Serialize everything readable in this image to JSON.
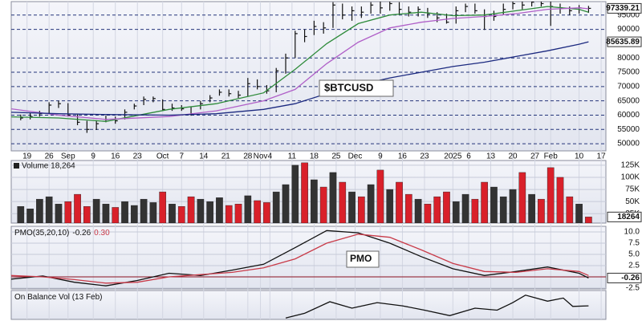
{
  "chart_data": [
    {
      "type": "ohlc",
      "title": "$BTCUSD",
      "x": [
        -2,
        1,
        4,
        7,
        10,
        13,
        16,
        19,
        22,
        25,
        28,
        31,
        34,
        37,
        40,
        43,
        46,
        49,
        52,
        55,
        58,
        61,
        64,
        67,
        70,
        73,
        76,
        79,
        82,
        85,
        88,
        91,
        94,
        97,
        100,
        103,
        106,
        109,
        112,
        115,
        118,
        121,
        124,
        127,
        130,
        133,
        136,
        139,
        142,
        145,
        148,
        151,
        154,
        157,
        160,
        163,
        166,
        169,
        172,
        175,
        178
      ],
      "high": [
        60200,
        60800,
        61500,
        64500,
        65000,
        64200,
        60500,
        58000,
        58200,
        59800,
        59500,
        62000,
        64000,
        66500,
        66500,
        65500,
        64000,
        63500,
        62800,
        65000,
        67000,
        69000,
        69000,
        68500,
        73000,
        72500,
        70500,
        76500,
        81500,
        89500,
        90000,
        93000,
        92500,
        99500,
        99000,
        98000,
        98000,
        99500,
        99800,
        99900,
        99500,
        98000,
        98000,
        97500,
        96000,
        95500,
        98000,
        99000,
        99000,
        97000,
        96500,
        99000,
        100500,
        100500,
        101000,
        101500,
        100500,
        99000,
        98000,
        98500,
        98200
      ],
      "low": [
        58200,
        58500,
        59500,
        60500,
        62500,
        59500,
        56500,
        53800,
        54800,
        57500,
        57000,
        58500,
        62000,
        63500,
        64500,
        61500,
        61500,
        61500,
        59800,
        62000,
        64500,
        66800,
        66500,
        66000,
        66500,
        69000,
        67500,
        68000,
        74500,
        80000,
        85500,
        88000,
        88500,
        90500,
        93500,
        93000,
        94000,
        95500,
        95500,
        96500,
        95000,
        94500,
        94500,
        94000,
        92500,
        92000,
        92000,
        96000,
        95500,
        89800,
        93000,
        95000,
        97000,
        97000,
        98000,
        98000,
        91200,
        95500,
        95000,
        95500,
        95800
      ],
      "close": [
        59000,
        59500,
        60500,
        63500,
        64000,
        60000,
        57500,
        55000,
        57000,
        58500,
        58000,
        61000,
        63200,
        65500,
        65800,
        62000,
        62500,
        62200,
        60500,
        64000,
        66000,
        68000,
        67500,
        67000,
        71000,
        70000,
        68500,
        75500,
        80000,
        88500,
        87500,
        91000,
        90500,
        98500,
        95000,
        96500,
        96000,
        98500,
        97500,
        99000,
        97000,
        96000,
        97000,
        95500,
        94000,
        92500,
        96500,
        98000,
        96500,
        94500,
        94500,
        97000,
        99000,
        98500,
        99500,
        99000,
        98000,
        97500,
        96500,
        97500,
        97339.21
      ],
      "bar_color": "#111111",
      "series": [
        {
          "color": "#2e8b3a",
          "x": [
            -5,
            10,
            25,
            45,
            60,
            75,
            85,
            95,
            105,
            115,
            125,
            135,
            145,
            155,
            165,
            175,
            178
          ],
          "values": [
            59400,
            59000,
            57800,
            62000,
            64000,
            67800,
            76000,
            85000,
            92000,
            95000,
            96000,
            94800,
            95000,
            96500,
            98000,
            97000,
            96000
          ]
        },
        {
          "color": "#b060c8",
          "x": [
            -5,
            10,
            25,
            45,
            60,
            75,
            85,
            95,
            105,
            115,
            125,
            135,
            145,
            155,
            165,
            175,
            178
          ],
          "values": [
            62200,
            60000,
            58500,
            59500,
            61500,
            65000,
            69000,
            78000,
            85500,
            90500,
            92500,
            93800,
            94500,
            95500,
            97000,
            97500,
            97200
          ]
        },
        {
          "color": "#1c2a80",
          "x": [
            -5,
            10,
            25,
            45,
            60,
            75,
            85,
            95,
            105,
            115,
            125,
            135,
            145,
            155,
            165,
            175,
            178
          ],
          "values": [
            61000,
            60500,
            60200,
            60000,
            60500,
            62000,
            64000,
            67500,
            70500,
            73000,
            75000,
            77000,
            78500,
            80500,
            82500,
            84800,
            85635.89
          ]
        }
      ],
      "xlim": [
        -5,
        183.5
      ],
      "ylim": [
        47500,
        99700
      ],
      "yticks": [
        50000,
        55000,
        60000,
        65000,
        70000,
        75000,
        80000,
        90000,
        95000
      ],
      "grid": true,
      "xticks": [
        {
          "value": 0,
          "label": "19"
        },
        {
          "value": 7,
          "label": "26"
        },
        {
          "value": 13,
          "label": "Sep"
        },
        {
          "value": 21,
          "label": "9"
        },
        {
          "value": 28,
          "label": "16"
        },
        {
          "value": 35,
          "label": "23"
        },
        {
          "value": 43,
          "label": "Oct"
        },
        {
          "value": 49,
          "label": "7"
        },
        {
          "value": 56,
          "label": "14"
        },
        {
          "value": 63,
          "label": "21"
        },
        {
          "value": 70,
          "label": "28"
        },
        {
          "value": 74,
          "label": "Nov"
        },
        {
          "value": 77,
          "label": "4"
        },
        {
          "value": 84,
          "label": "11"
        },
        {
          "value": 91,
          "label": "18"
        },
        {
          "value": 98,
          "label": "25"
        },
        {
          "value": 104,
          "label": "Dec"
        },
        {
          "value": 112,
          "label": "9"
        },
        {
          "value": 119,
          "label": "16"
        },
        {
          "value": 126,
          "label": "23"
        },
        {
          "value": 135,
          "label": "2025"
        },
        {
          "value": 140,
          "label": "6"
        },
        {
          "value": 147,
          "label": "13"
        },
        {
          "value": 154,
          "label": "20"
        },
        {
          "value": 161,
          "label": "27"
        },
        {
          "value": 166,
          "label": "Feb"
        },
        {
          "value": 175,
          "label": "10"
        },
        {
          "value": 182,
          "label": "17"
        }
      ]
    },
    {
      "type": "bar",
      "title": "Volume 18,264",
      "x": [
        -2,
        1,
        4,
        7,
        10,
        13,
        16,
        19,
        22,
        25,
        28,
        31,
        34,
        37,
        40,
        43,
        46,
        49,
        52,
        55,
        58,
        61,
        64,
        67,
        70,
        73,
        76,
        79,
        82,
        85,
        88,
        91,
        94,
        97,
        100,
        103,
        106,
        109,
        112,
        115,
        118,
        121,
        124,
        127,
        130,
        133,
        136,
        139,
        142,
        145,
        148,
        151,
        154,
        157,
        160,
        163,
        166,
        169,
        172,
        175,
        178
      ],
      "values": [
        40000,
        35000,
        55000,
        60000,
        45000,
        50000,
        65000,
        40000,
        55000,
        45000,
        38000,
        50000,
        42000,
        55000,
        48000,
        70000,
        45000,
        40000,
        60000,
        55000,
        50000,
        58000,
        42000,
        45000,
        62000,
        52000,
        48000,
        70000,
        85000,
        125000,
        130000,
        95000,
        80000,
        110000,
        90000,
        70000,
        60000,
        85000,
        115000,
        75000,
        90000,
        65000,
        55000,
        45000,
        60000,
        70000,
        50000,
        65000,
        55000,
        90000,
        80000,
        60000,
        75000,
        110000,
        65000,
        55000,
        120000,
        100000,
        60000,
        45000,
        18264
      ],
      "up_color": "#333333",
      "down_color": "#d9202a",
      "xlim": [
        -5,
        183.5
      ],
      "ylim": [
        5600,
        134700
      ],
      "yticks": [
        {
          "value": 25000,
          "label": "25K"
        },
        {
          "value": 50000,
          "label": "50K"
        },
        {
          "value": 75000,
          "label": "75K"
        },
        {
          "value": 100000,
          "label": "100K"
        },
        {
          "value": 125000,
          "label": "125K"
        }
      ],
      "grid": true
    },
    {
      "type": "line",
      "title": "PMO(35,20,10)",
      "annotation": "PMO",
      "series": [
        {
          "color": "#111111",
          "x": [
            -5,
            5,
            15,
            25,
            35,
            45,
            55,
            65,
            75,
            85,
            95,
            105,
            115,
            125,
            135,
            145,
            155,
            165,
            175,
            178
          ],
          "values": [
            -0.5,
            0.2,
            -1.2,
            -2.0,
            -0.8,
            0.8,
            0.3,
            1.5,
            2.8,
            6.5,
            10.3,
            9.8,
            7.5,
            4.5,
            1.8,
            0.3,
            1.2,
            2.2,
            0.8,
            -0.26
          ]
        },
        {
          "color": "#c83a48",
          "x": [
            -5,
            5,
            15,
            25,
            35,
            45,
            55,
            65,
            75,
            85,
            95,
            105,
            115,
            125,
            135,
            145,
            155,
            165,
            175,
            178
          ],
          "values": [
            0.3,
            0.0,
            -0.6,
            -1.4,
            -1.2,
            0.0,
            0.5,
            1.0,
            2.0,
            4.0,
            7.5,
            9.5,
            8.8,
            6.0,
            3.0,
            1.2,
            1.0,
            1.8,
            1.2,
            0.3
          ],
          "value_labels": [
            null,
            null,
            null,
            null,
            null,
            null,
            null,
            null,
            null,
            null,
            null,
            null,
            null,
            null,
            null,
            null,
            null,
            null,
            null,
            "0.30"
          ]
        }
      ],
      "reference_line": 0,
      "reference_color": "#8b1020",
      "xlim": [
        -5,
        183.5
      ],
      "ylim": [
        -2.68,
        11.25
      ],
      "yticks": [
        -2.5,
        2.5,
        {
          "value": 5,
          "label": "5.0"
        },
        7.5,
        {
          "value": 10,
          "label": "10.0"
        }
      ],
      "grid": true
    },
    {
      "type": "line",
      "title": "On Balance Vol (13 Feb)",
      "series": [
        {
          "color": "#111111",
          "x": [
            82,
            88,
            96,
            103,
            111,
            119,
            126,
            134,
            142,
            149,
            154,
            158,
            165,
            170,
            173,
            178
          ],
          "values": [
            5,
            21,
            61,
            39,
            58,
            47,
            32,
            13,
            39,
            32,
            58,
            84,
            63,
            74,
            45,
            47
          ]
        }
      ],
      "xlim": [
        -5,
        183.5
      ],
      "ylim": [
        0,
        100
      ],
      "grid": false
    }
  ]
}
